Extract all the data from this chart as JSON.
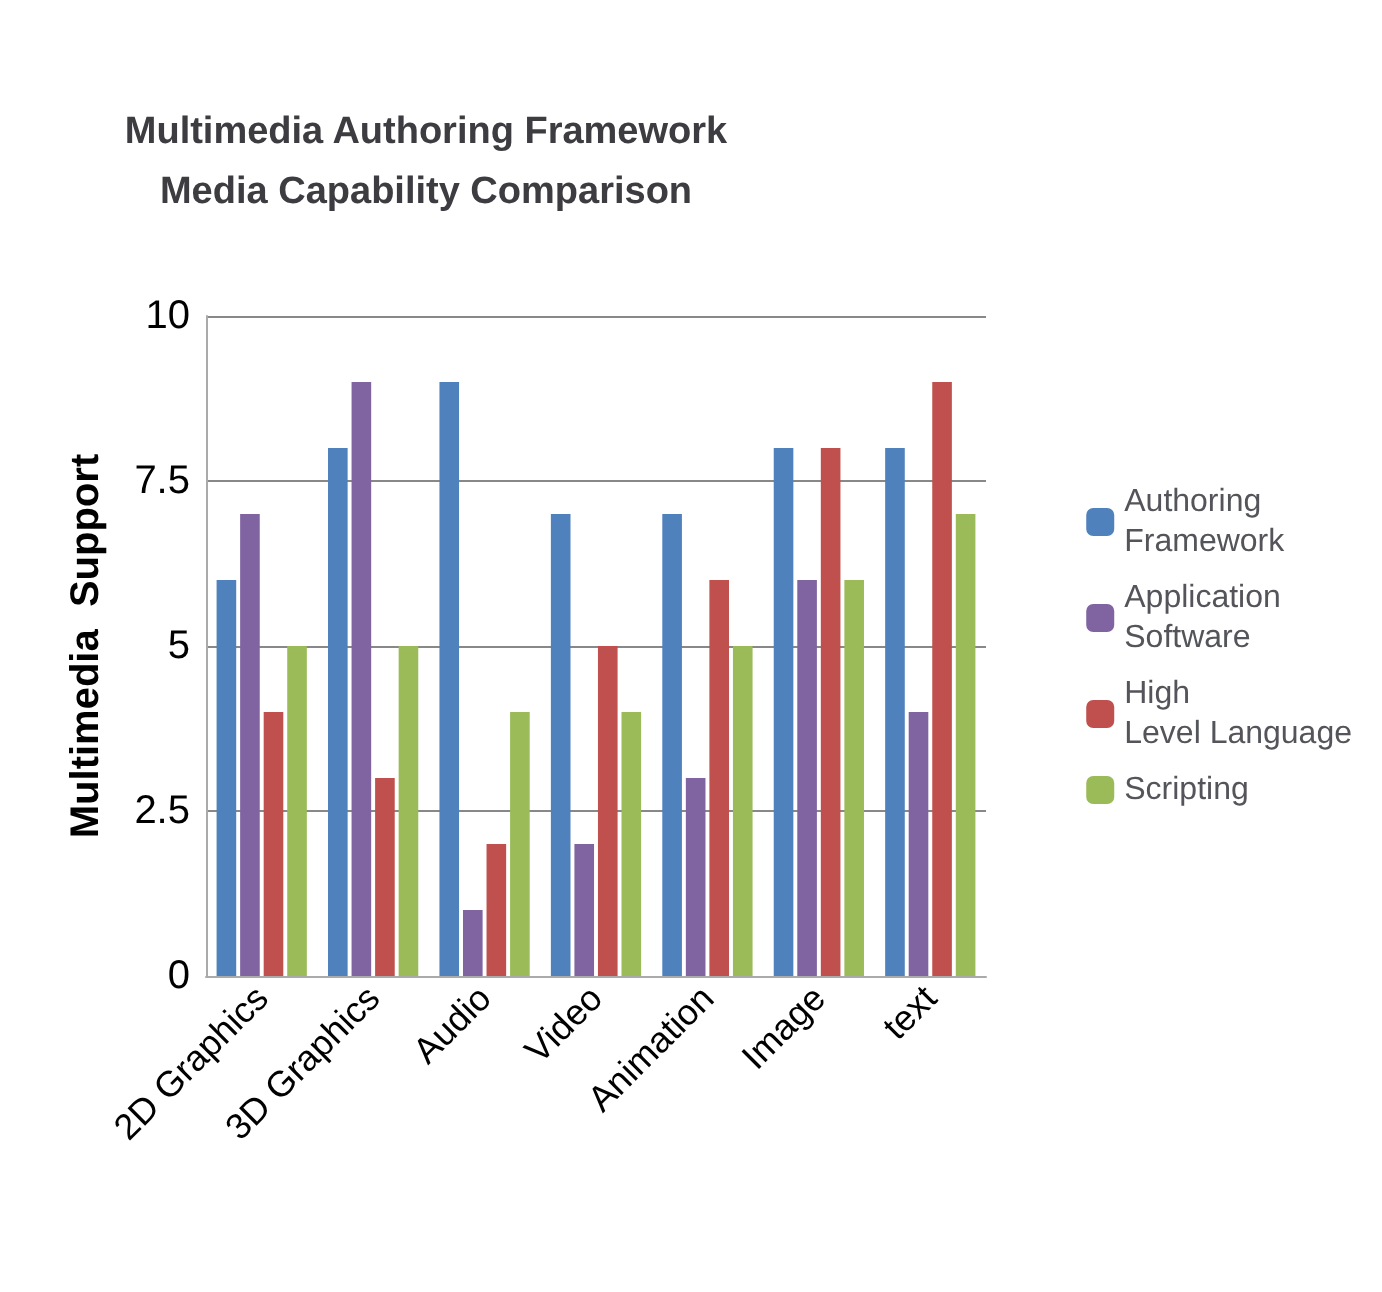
{
  "chart_data": {
    "type": "bar",
    "title": "Multimedia Authoring Framework\nMedia Capability Comparison",
    "ylabel": "Multimedia  Support",
    "categories": [
      "2D Graphics",
      "3D Graphics",
      "Audio",
      "Video",
      "Animation",
      "Image",
      "text"
    ],
    "series": [
      {
        "name": "Authoring Framework",
        "color": "#4f81bd",
        "values": [
          6,
          8,
          9,
          7,
          7,
          8,
          8
        ]
      },
      {
        "name": "Application Software",
        "color": "#8064a2",
        "values": [
          7,
          9,
          1,
          2,
          3,
          6,
          4
        ]
      },
      {
        "name": "High Level Language",
        "color": "#c0504d",
        "values": [
          4,
          3,
          2,
          5,
          6,
          8,
          9
        ]
      },
      {
        "name": "Scripting",
        "color": "#9bbb59",
        "values": [
          5,
          5,
          4,
          4,
          5,
          6,
          7
        ]
      }
    ],
    "ylim": [
      0,
      10
    ],
    "yticks": [
      0,
      2.5,
      5,
      7.5,
      10
    ],
    "grid": "y",
    "legend": "right"
  }
}
